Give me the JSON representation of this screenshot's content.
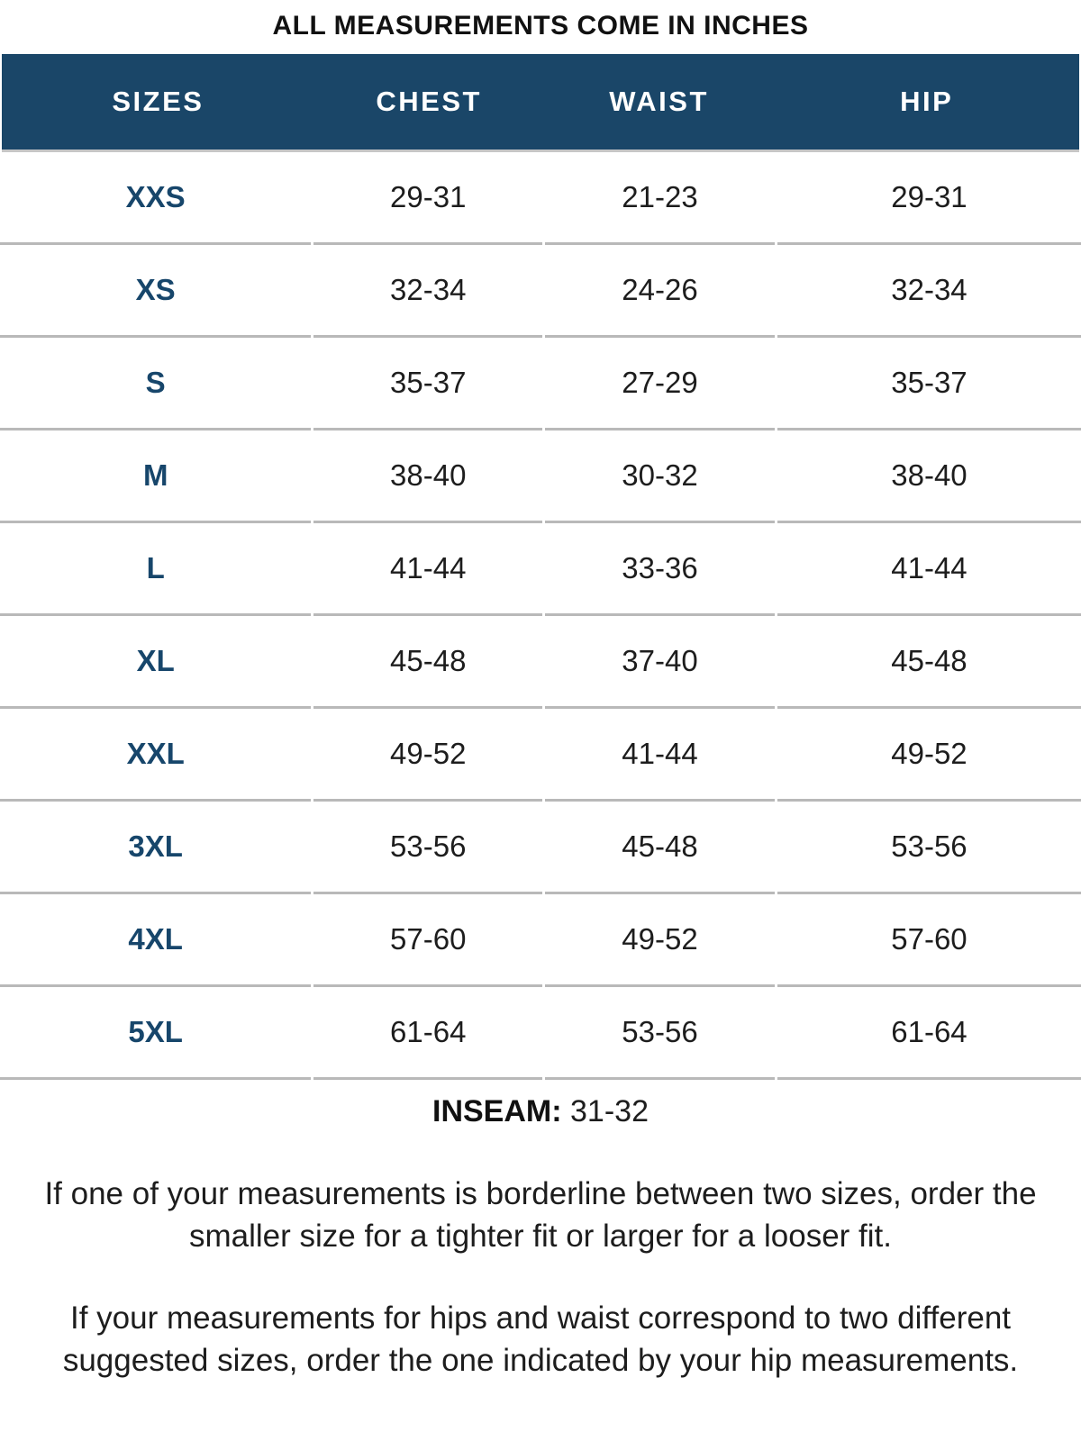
{
  "title": "ALL MEASUREMENTS COME IN INCHES",
  "table": {
    "columns": [
      "SIZES",
      "CHEST",
      "WAIST",
      "HIP"
    ],
    "rows": [
      {
        "size": "XXS",
        "chest": "29-31",
        "waist": "21-23",
        "hip": "29-31"
      },
      {
        "size": "XS",
        "chest": "32-34",
        "waist": "24-26",
        "hip": "32-34"
      },
      {
        "size": "S",
        "chest": "35-37",
        "waist": "27-29",
        "hip": "35-37"
      },
      {
        "size": "M",
        "chest": "38-40",
        "waist": "30-32",
        "hip": "38-40"
      },
      {
        "size": "L",
        "chest": "41-44",
        "waist": "33-36",
        "hip": "41-44"
      },
      {
        "size": "XL",
        "chest": "45-48",
        "waist": "37-40",
        "hip": "45-48"
      },
      {
        "size": "XXL",
        "chest": "49-52",
        "waist": "41-44",
        "hip": "49-52"
      },
      {
        "size": "3XL",
        "chest": "53-56",
        "waist": "45-48",
        "hip": "53-56"
      },
      {
        "size": "4XL",
        "chest": "57-60",
        "waist": "49-52",
        "hip": "57-60"
      },
      {
        "size": "5XL",
        "chest": "61-64",
        "waist": "53-56",
        "hip": "61-64"
      }
    ]
  },
  "inseam": {
    "label": "INSEAM:",
    "value": "31-32"
  },
  "notes": [
    "If one of your measurements is borderline between two sizes, order the smaller size for a tighter fit or larger for a looser fit.",
    "If your measurements for hips and waist correspond to two different suggested sizes, order the one indicated by your hip measurements."
  ],
  "colors": {
    "header_background": "#1a4668",
    "header_text": "#ffffff",
    "size_label_text": "#17466b",
    "body_text": "#1d1d1d",
    "separator_line": "#b9b9b9"
  }
}
